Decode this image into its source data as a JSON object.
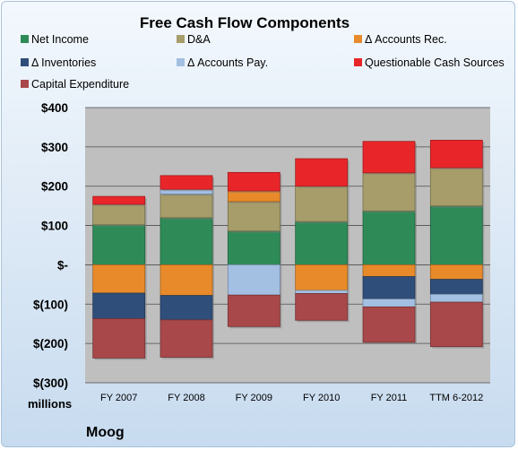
{
  "company": "Moog",
  "unit_label": "millions",
  "chart_data": {
    "type": "bar",
    "stacked": true,
    "title": "Free Cash Flow Components",
    "categories": [
      "FY 2007",
      "FY 2008",
      "FY 2009",
      "FY 2010",
      "FY 2011",
      "TTM 6-2012"
    ],
    "ylim": [
      -300,
      400
    ],
    "yticks": [
      {
        "value": 400,
        "label": "$400"
      },
      {
        "value": 300,
        "label": "$300"
      },
      {
        "value": 200,
        "label": "$200"
      },
      {
        "value": 100,
        "label": "$100"
      },
      {
        "value": 0,
        "label": "$-"
      },
      {
        "value": -100,
        "label": "$(100)"
      },
      {
        "value": -200,
        "label": "$(200)"
      },
      {
        "value": -300,
        "label": "$(300)"
      }
    ],
    "grid": true,
    "legend_position": "top",
    "series": [
      {
        "name": "Net Income",
        "color": "#2e8b57",
        "values": [
          102,
          120,
          86,
          110,
          137,
          150
        ]
      },
      {
        "name": "D&A",
        "color": "#a69d6a",
        "values": [
          52,
          60,
          75,
          90,
          97,
          97
        ]
      },
      {
        "name": "Δ Accounts Rec.",
        "color": "#e88a2a",
        "values": [
          -72,
          -78,
          27,
          -65,
          -30,
          -37
        ]
      },
      {
        "name": "Δ Inventories",
        "color": "#2f4e7a",
        "values": [
          -65,
          -62,
          0,
          0,
          -57,
          -38
        ]
      },
      {
        "name": "Δ Accounts Pay.",
        "color": "#a3c0e3",
        "values": [
          0,
          12,
          -77,
          -8,
          -20,
          -20
        ]
      },
      {
        "name": "Questionable Cash Sources",
        "color": "#e8262a",
        "values": [
          20,
          35,
          47,
          70,
          80,
          70
        ]
      },
      {
        "name": "Capital Expenditure",
        "color": "#a8484a",
        "values": [
          -100,
          -95,
          -80,
          -68,
          -90,
          -113
        ]
      }
    ]
  }
}
